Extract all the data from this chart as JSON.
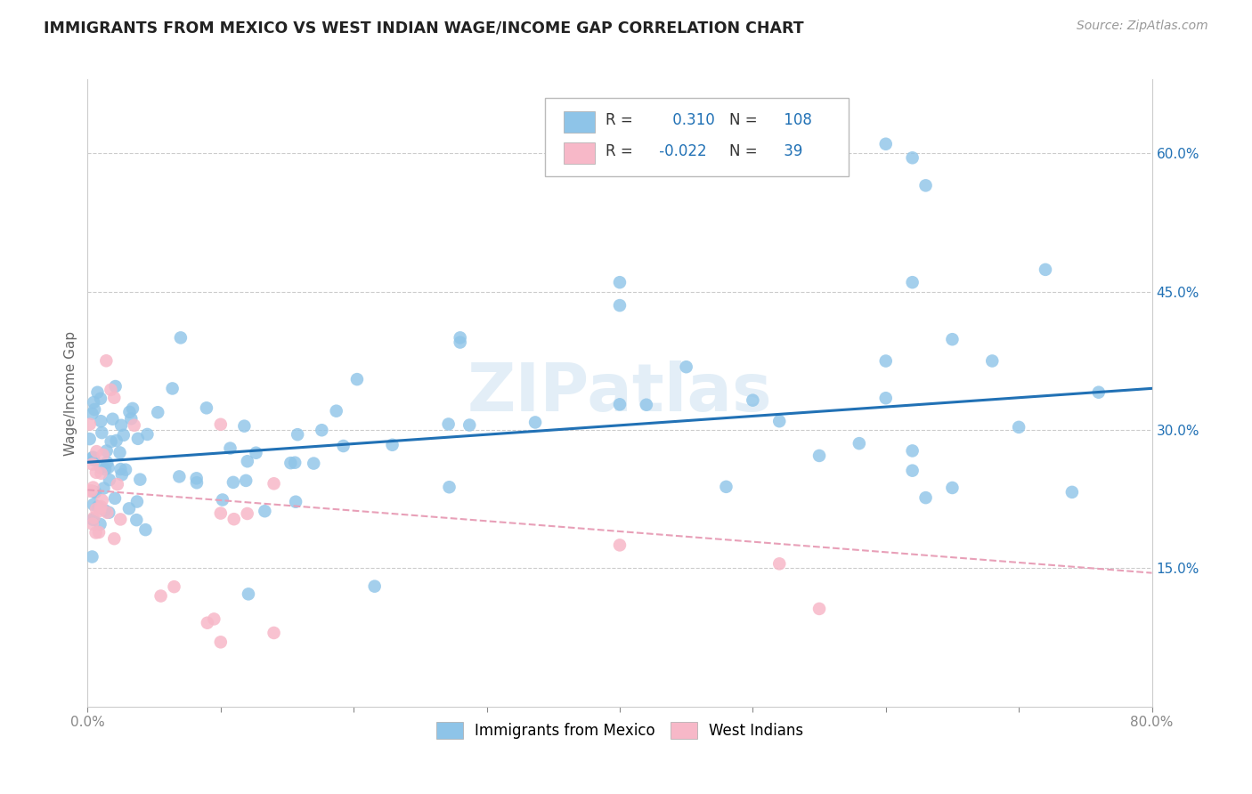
{
  "title": "IMMIGRANTS FROM MEXICO VS WEST INDIAN WAGE/INCOME GAP CORRELATION CHART",
  "source": "Source: ZipAtlas.com",
  "ylabel": "Wage/Income Gap",
  "xlim": [
    0.0,
    0.8
  ],
  "ylim": [
    0.0,
    0.68
  ],
  "y_ticks_right": [
    0.15,
    0.3,
    0.45,
    0.6
  ],
  "y_tick_labels_right": [
    "15.0%",
    "30.0%",
    "45.0%",
    "60.0%"
  ],
  "R_mexico": 0.31,
  "N_mexico": 108,
  "R_west_indian": -0.022,
  "N_west_indian": 39,
  "color_mexico": "#8ec4e8",
  "color_west_indian": "#f7b8c8",
  "line_color_mexico": "#2171b5",
  "line_color_west_indian": "#f4a0b0",
  "line_color_wi_dashed": "#e8a0b8",
  "watermark": "ZIPatlas",
  "legend_mexico": "Immigrants from Mexico",
  "legend_west_indian": "West Indians",
  "background_color": "#ffffff",
  "grid_color": "#cccccc",
  "mexico_line_start_y": 0.265,
  "mexico_line_end_y": 0.345,
  "wi_line_start_y": 0.235,
  "wi_line_end_y": 0.145
}
